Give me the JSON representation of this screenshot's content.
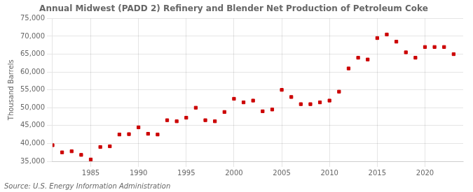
{
  "chart_data": {
    "type": "scatter",
    "title": "Annual Midwest (PADD 2) Refinery and Blender Net Production of Petroleum Coke",
    "ylabel": "Thousand Barrels",
    "annotations": [
      "Source: U.S. Energy Information Administration"
    ],
    "x": [
      1981,
      1982,
      1983,
      1984,
      1985,
      1986,
      1987,
      1988,
      1989,
      1990,
      1991,
      1992,
      1993,
      1994,
      1995,
      1996,
      1997,
      1998,
      1999,
      2000,
      2001,
      2002,
      2003,
      2004,
      2005,
      2006,
      2007,
      2008,
      2009,
      2010,
      2011,
      2012,
      2013,
      2014,
      2015,
      2016,
      2017,
      2018,
      2019,
      2020,
      2021,
      2022,
      2023
    ],
    "values": [
      39500,
      37500,
      37800,
      36800,
      35500,
      39000,
      39200,
      42500,
      42600,
      44500,
      42700,
      42500,
      46500,
      46200,
      47200,
      50000,
      46500,
      46200,
      48800,
      52500,
      51500,
      52000,
      49000,
      49500,
      55000,
      53000,
      51000,
      51000,
      51500,
      52000,
      54500,
      61000,
      64000,
      63500,
      69500,
      70500,
      68500,
      65500,
      64000,
      67000,
      67000,
      67000,
      65000
    ],
    "color": "#cc0000",
    "marker": "square",
    "xlim": [
      1981,
      2024
    ],
    "xticks": [
      1985,
      1990,
      1995,
      2000,
      2005,
      2010,
      2015,
      2020
    ],
    "ylim": [
      35000,
      75000
    ],
    "yticks": [
      {
        "value": 35000,
        "label": "35,000"
      },
      {
        "value": 40000,
        "label": "40,000"
      },
      {
        "value": 45000,
        "label": "45,000"
      },
      {
        "value": 50000,
        "label": "50,000"
      },
      {
        "value": 55000,
        "label": "55,000"
      },
      {
        "value": 60000,
        "label": "60,000"
      },
      {
        "value": 65000,
        "label": "65,000"
      },
      {
        "value": 70000,
        "label": "70,000"
      },
      {
        "value": 75000,
        "label": "75,000"
      }
    ],
    "grid": true
  }
}
